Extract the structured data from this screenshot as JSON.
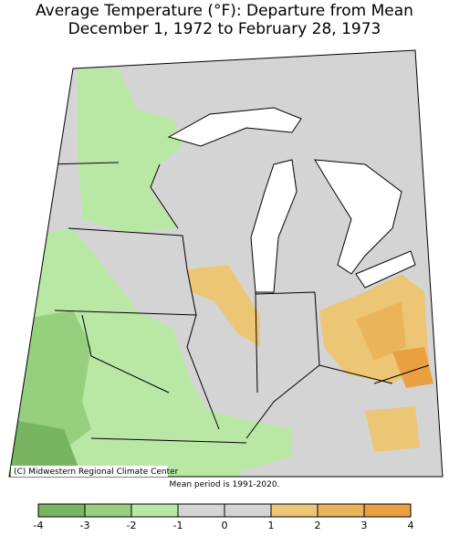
{
  "header": {
    "title_line1": "Average Temperature (°F): Departure from Mean",
    "title_line2": "December 1, 1972 to February 28, 1973"
  },
  "map": {
    "credit": "(C) Midwestern Regional Climate Center",
    "note": "Mean period is 1991-2020."
  },
  "legend": {
    "ticks": [
      -4,
      -3,
      -2,
      -1,
      0,
      1,
      2,
      3,
      4
    ],
    "colors": [
      "#77b560",
      "#96d07f",
      "#b9e8a5",
      "#d4d4d4",
      "#d4d4d4",
      "#ecc674",
      "#eab55a",
      "#eaa040"
    ]
  }
}
